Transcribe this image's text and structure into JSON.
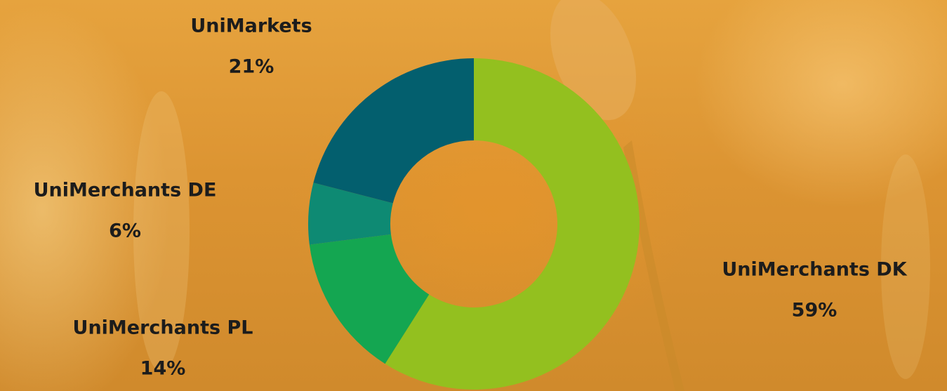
{
  "chart_data": {
    "type": "donut",
    "categories": [
      "UniMerchants DK",
      "UniMerchants PL",
      "UniMerchants DE",
      "UniMarkets"
    ],
    "values": [
      59,
      14,
      6,
      21
    ],
    "value_labels": [
      "59%",
      "14%",
      "6%",
      "21%"
    ],
    "colors": [
      "#93c01f",
      "#14a651",
      "#0e8a73",
      "#035f6e"
    ]
  }
}
